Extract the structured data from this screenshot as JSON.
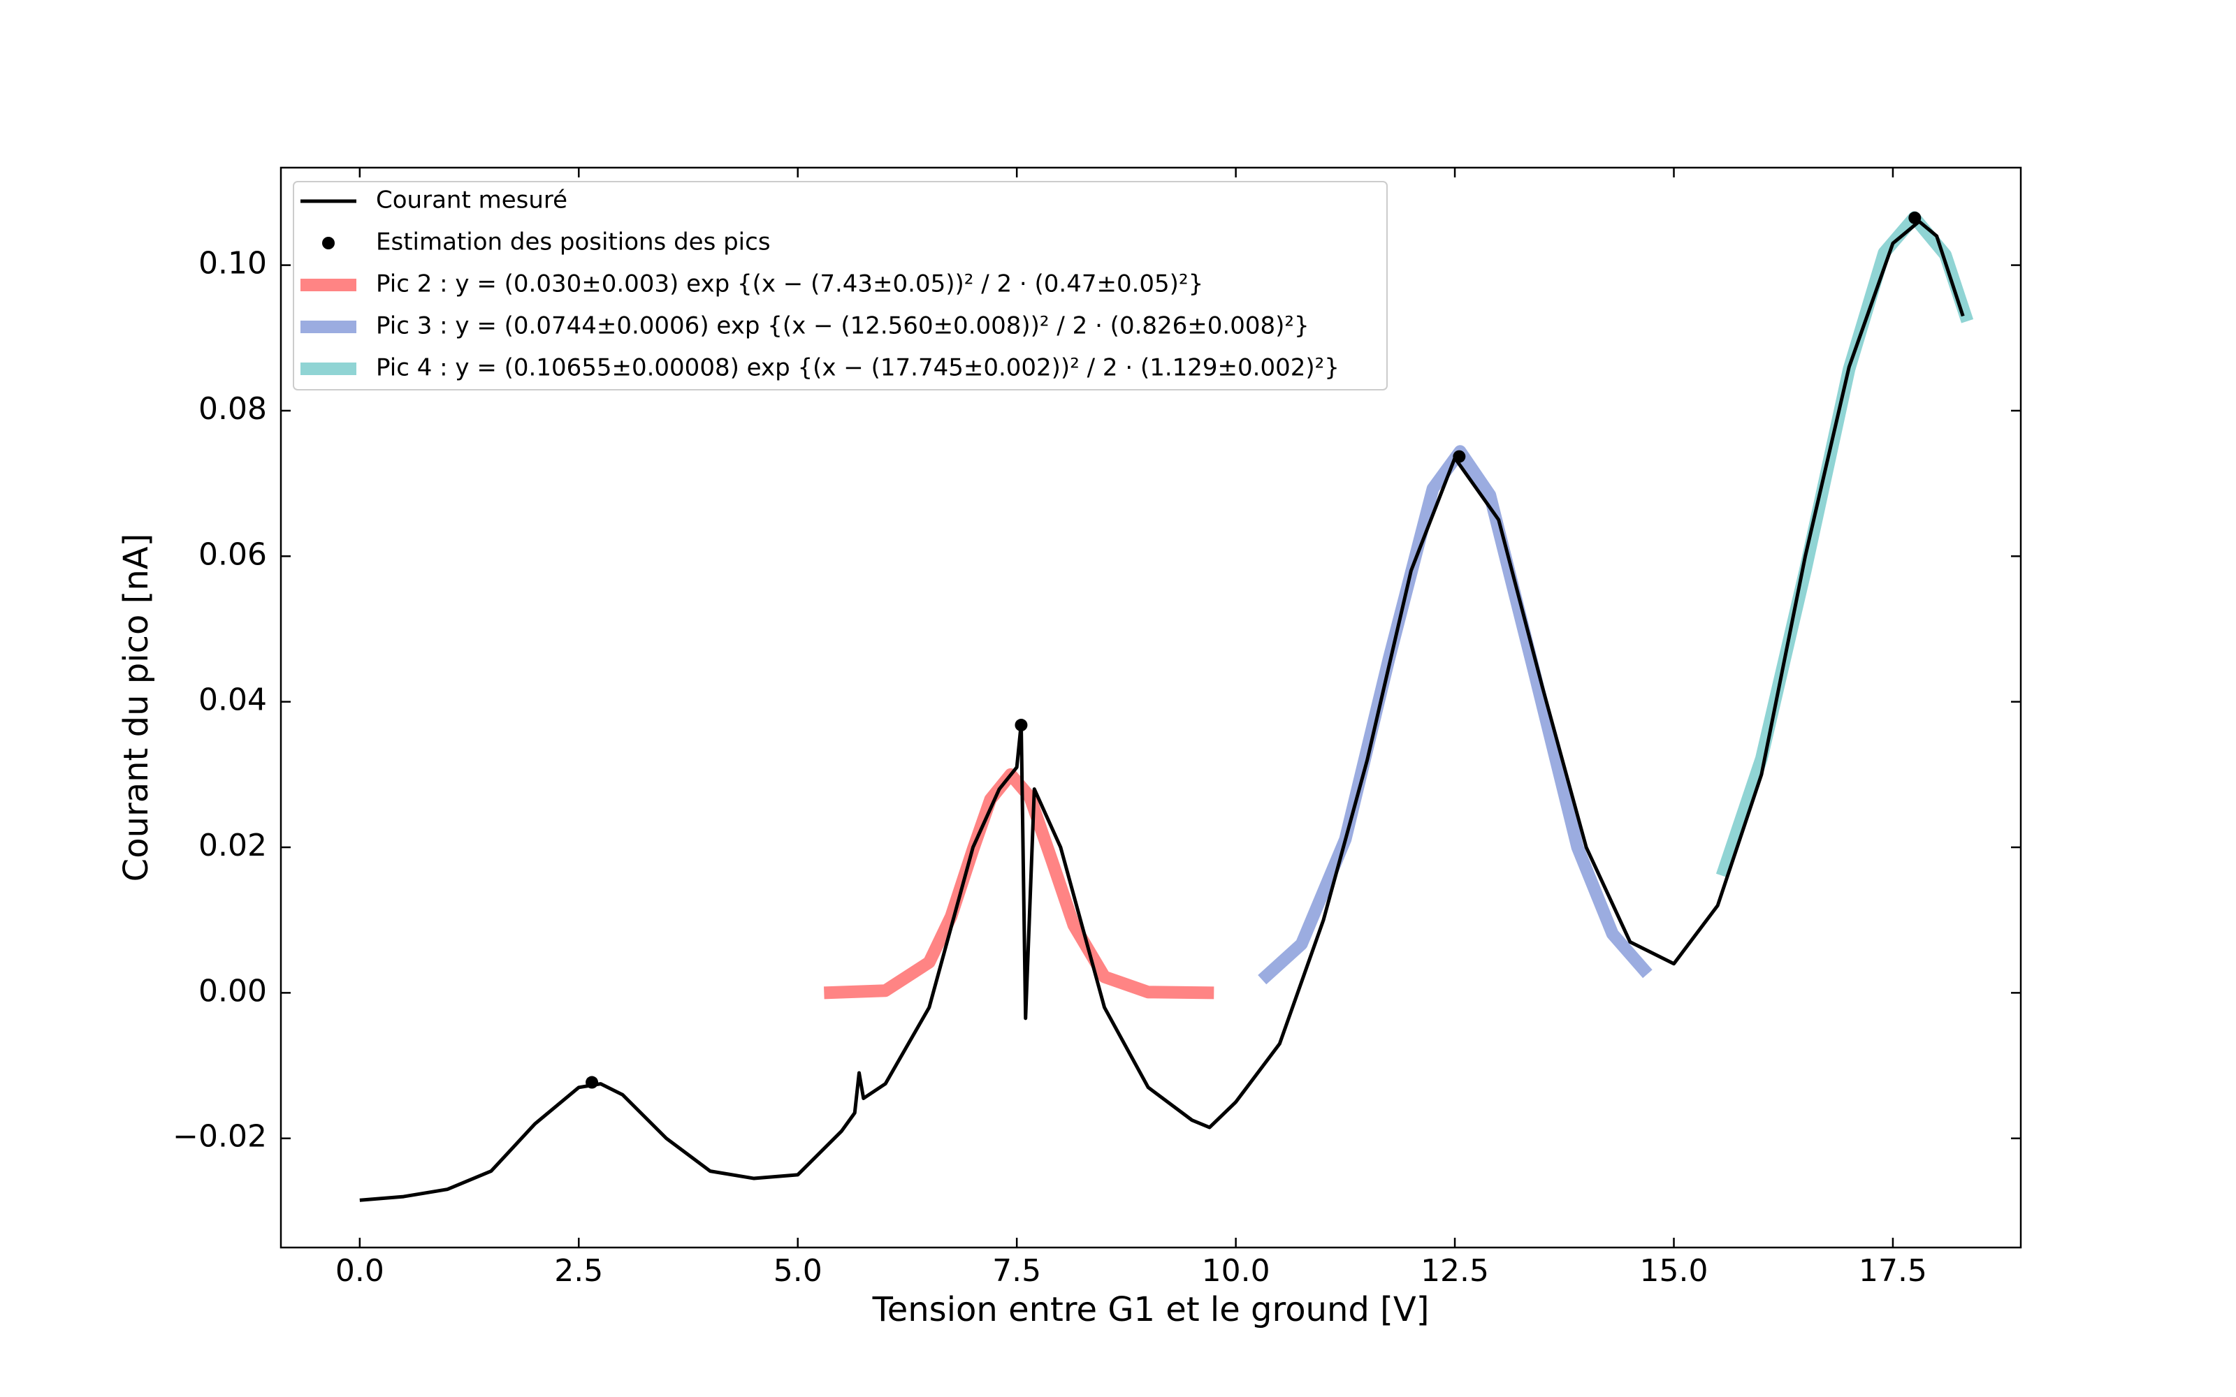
{
  "chart_data": {
    "type": "line",
    "xlabel": "Tension entre G1 et le ground [V]",
    "ylabel": "Courant du pico [nA]",
    "xlim": [
      -0.9,
      18.96
    ],
    "ylim": [
      -0.035,
      0.1134
    ],
    "xticks": [
      {
        "value": 0,
        "label": "0.0"
      },
      2.5,
      {
        "value": 5,
        "label": "5.0"
      },
      7.5,
      {
        "value": 10,
        "label": "10.0"
      },
      12.5,
      {
        "value": 15,
        "label": "15.0"
      },
      17.5
    ],
    "yticks": [
      {
        "value": -0.02,
        "label": "−0.02"
      },
      {
        "value": 0,
        "label": "0.00"
      },
      {
        "value": 0.02,
        "label": "0.02"
      },
      {
        "value": 0.04,
        "label": "0.04"
      },
      {
        "value": 0.06,
        "label": "0.06"
      },
      {
        "value": 0.08,
        "label": "0.08"
      },
      {
        "value": 0.1,
        "label": "0.10"
      }
    ],
    "legend": "upper left",
    "series": [
      {
        "name": "Courant mesuré",
        "kind": "line",
        "color": "#000000",
        "x": [
          0,
          0.5,
          1.0,
          1.5,
          2.0,
          2.5,
          2.75,
          3.0,
          3.5,
          4.0,
          4.5,
          5.0,
          5.5,
          5.65,
          5.7,
          5.75,
          6.0,
          6.5,
          7.0,
          7.3,
          7.5,
          7.55,
          7.6,
          7.7,
          8.0,
          8.5,
          9.0,
          9.5,
          9.7,
          10.0,
          10.5,
          11.0,
          11.5,
          12.0,
          12.5,
          13.0,
          13.5,
          14.0,
          14.5,
          15.0,
          15.5,
          16.0,
          16.5,
          17.0,
          17.5,
          17.8,
          18.0,
          18.3
        ],
        "values": [
          -0.0285,
          -0.028,
          -0.027,
          -0.0245,
          -0.018,
          -0.013,
          -0.0125,
          -0.014,
          -0.02,
          -0.0245,
          -0.0255,
          -0.025,
          -0.019,
          -0.0165,
          -0.011,
          -0.0145,
          -0.0125,
          -0.002,
          0.02,
          0.028,
          0.031,
          0.037,
          -0.0035,
          0.028,
          0.02,
          -0.002,
          -0.013,
          -0.0175,
          -0.0185,
          -0.015,
          -0.007,
          0.01,
          0.032,
          0.058,
          0.0735,
          0.065,
          0.042,
          0.02,
          0.007,
          0.004,
          0.012,
          0.03,
          0.06,
          0.086,
          0.103,
          0.106,
          0.104,
          0.093
        ]
      },
      {
        "name": "Estimation des positions des pics",
        "kind": "scatter",
        "color": "#000000",
        "x": [
          2.65,
          7.55,
          12.55,
          17.75
        ],
        "values": [
          -0.0123,
          0.0368,
          0.0737,
          0.1065
        ]
      },
      {
        "name": "Pic 2 : y = (0.030±0.003) exp {(x − (7.43±0.05))² / 2 · (0.47±0.05)²}",
        "kind": "fit",
        "color": "#ff6f6f",
        "x": [
          5.3,
          6.0,
          6.5,
          6.75,
          7.0,
          7.2,
          7.43,
          7.65,
          7.9,
          8.15,
          8.5,
          9.0,
          9.75
        ],
        "values": [
          0,
          0.0003,
          0.0042,
          0.0105,
          0.0197,
          0.0266,
          0.03,
          0.0269,
          0.0182,
          0.0093,
          0.0022,
          0.0001,
          0
        ]
      },
      {
        "name": "Pic 3 : y = (0.0744±0.0006) exp {(x − (12.560±0.008))² / 2 · (0.826±0.008)²}",
        "kind": "fit",
        "color": "#8a9edb",
        "x": [
          10.3,
          10.75,
          11.25,
          11.75,
          12.25,
          12.56,
          12.9,
          13.4,
          13.9,
          14.3,
          14.7
        ],
        "values": [
          0.0018,
          0.0067,
          0.0211,
          0.046,
          0.0693,
          0.0744,
          0.0684,
          0.0444,
          0.02,
          0.0081,
          0.0026
        ]
      },
      {
        "name": "Pic 4 : y = (0.10655±0.00008) exp {(x − (17.745±0.002))² / 2 · (1.129±0.002)²}",
        "kind": "fit",
        "color": "#7ccccc",
        "x": [
          15.55,
          16.0,
          16.5,
          17.0,
          17.4,
          17.745,
          18.1,
          18.35
        ],
        "values": [
          0.0161,
          0.0322,
          0.058,
          0.0857,
          0.1017,
          0.10655,
          0.1014,
          0.0923
        ]
      }
    ]
  }
}
